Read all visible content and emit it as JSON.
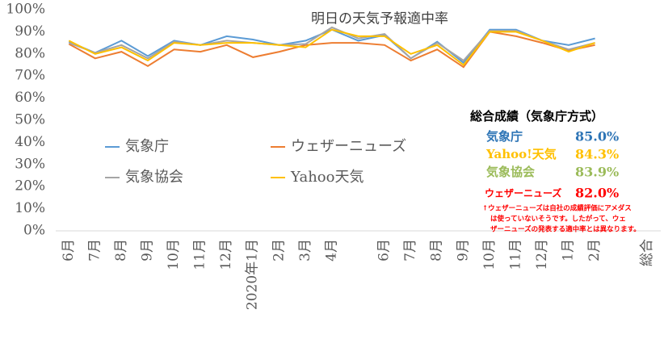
{
  "chart_data": {
    "type": "line",
    "title": "明日の天気予報適中率",
    "categories": [
      "6月",
      "7月",
      "8月",
      "9月",
      "10月",
      "11月",
      "12月",
      "2020年1月",
      "2月",
      "3月",
      "4月",
      null,
      "6月",
      "7月",
      "8月",
      "9月",
      "10月",
      "11月",
      "12月",
      "1月",
      "2月",
      null,
      "総合"
    ],
    "series": [
      {
        "name": "気象庁",
        "color": "#5b9bd5",
        "values": [
          85.5,
          80.5,
          86,
          79,
          86,
          84,
          88,
          86.5,
          84,
          86,
          91,
          86,
          88.5,
          78,
          85.5,
          76,
          91,
          91,
          86,
          84,
          87,
          null,
          null
        ]
      },
      {
        "name": "ウェザーニューズ",
        "color": "#ed7d31",
        "values": [
          84.5,
          78,
          81,
          74.5,
          82,
          81,
          84,
          78.5,
          81,
          84,
          85,
          85,
          84,
          77,
          82,
          74,
          90,
          88,
          85,
          81.5,
          84,
          null,
          null
        ]
      },
      {
        "name": "気象協会",
        "color": "#a5a5a5",
        "values": [
          85,
          80.5,
          84,
          78,
          85.5,
          84,
          86,
          85,
          84,
          84.5,
          92,
          87,
          89,
          78,
          85,
          77,
          90.5,
          90.5,
          86,
          82,
          85,
          null,
          null
        ]
      },
      {
        "name": "Yahoo天気",
        "color": "#ffc000",
        "values": [
          86,
          80,
          83,
          77,
          85,
          84,
          85,
          85,
          84,
          83,
          91,
          88,
          88,
          80,
          84,
          75,
          90,
          90,
          86,
          81,
          85,
          null,
          null
        ]
      }
    ],
    "ylim": [
      0,
      100
    ],
    "yticks": [
      {
        "value": 0,
        "label": "0%"
      },
      {
        "value": 10,
        "label": "10%"
      },
      {
        "value": 20,
        "label": "20%"
      },
      {
        "value": 30,
        "label": "30%"
      },
      {
        "value": 40,
        "label": "40%"
      },
      {
        "value": 50,
        "label": "50%"
      },
      {
        "value": 60,
        "label": "60%"
      },
      {
        "value": 70,
        "label": "70%"
      },
      {
        "value": 80,
        "label": "80%"
      },
      {
        "value": 90,
        "label": "90%"
      },
      {
        "value": 100,
        "label": "100%"
      }
    ],
    "grid": false,
    "summary": {
      "title": "総合成績（気象庁方式）",
      "rows": [
        {
          "name": "気象庁",
          "value": "85.0%",
          "color": "#2e75b6"
        },
        {
          "name": "Yahoo!天気",
          "value": "84.3%",
          "color": "#ffc000"
        },
        {
          "name": "気象協会",
          "value": "83.9%",
          "color": "#9bbb59"
        },
        {
          "name": "ウェザーニューズ",
          "value": "82.0%",
          "color": "#ff0000"
        }
      ]
    },
    "note": [
      "↑ウェザーニューズは自社の成績評価にアメダス",
      "は使っていないそうです。したがって、ウェ",
      "ザーニューズの発表する適中率とは異なります。"
    ]
  }
}
